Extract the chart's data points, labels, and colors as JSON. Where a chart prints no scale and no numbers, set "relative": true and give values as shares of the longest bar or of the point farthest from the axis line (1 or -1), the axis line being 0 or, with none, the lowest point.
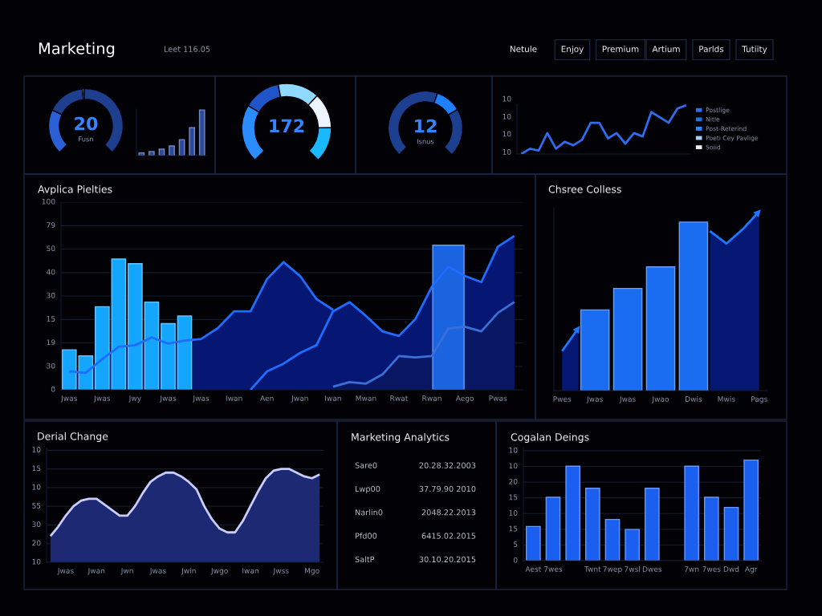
{
  "chart_data": [
    {
      "type": "other",
      "title": "Marketing",
      "annotations": [
        "Leet 116.05",
        "Netule",
        "Enjoy",
        "Premium",
        "Artium",
        "Parlds",
        "Tutiity"
      ]
    },
    {
      "type": "donut",
      "categories": [
        null,
        null,
        null,
        null
      ],
      "values": [
        26,
        22,
        1,
        51
      ],
      "colors": [
        "#2a5fd6",
        "#1d3f8e",
        "#a8c4f0",
        "#1d3f8e"
      ],
      "annotations": [
        "20",
        "Fusn"
      ]
    },
    {
      "type": "bar",
      "relative": true,
      "categories": [
        null,
        null,
        null,
        null,
        null,
        null,
        null
      ],
      "values": [
        0.06,
        0.09,
        0.14,
        0.21,
        0.35,
        0.61,
        1
      ],
      "color": "#2c4a9c"
    },
    {
      "type": "donut",
      "categories": [
        null,
        null,
        null,
        null,
        null
      ],
      "values": [
        28,
        18,
        20,
        17,
        17
      ],
      "colors": [
        "#2a8cff",
        "#1f55c8",
        "#8fd8ff",
        "#eef4ff",
        "#19b8ff"
      ],
      "annotations": [
        "172"
      ]
    },
    {
      "type": "donut",
      "categories": [
        null,
        null,
        null
      ],
      "values": [
        57,
        15,
        28
      ],
      "colors": [
        "#1c3f8f",
        "#1e7fff",
        "#1c3f8f"
      ],
      "annotations": [
        "12",
        "Isnus"
      ]
    },
    {
      "type": "line",
      "relative": true,
      "legend": "right",
      "annotations": [
        "10",
        "10",
        "10",
        "10"
      ],
      "categories": [
        null,
        null,
        null,
        null,
        null,
        null,
        null,
        null,
        null,
        null,
        null,
        null,
        null,
        null,
        null,
        null,
        null,
        null,
        null,
        null
      ],
      "series": [
        {
          "name": "Postlige",
          "color": "#2f6cf0",
          "values": [
            0,
            0.11,
            0.07,
            0.43,
            0.11,
            0.25,
            0.18,
            0.29,
            0.64,
            0.64,
            0.32,
            0.43,
            0.21,
            0.43,
            0.36,
            0.86,
            0.75,
            0.64,
            0.93,
            1.0
          ]
        },
        {
          "name": "Nitle",
          "color": "#1f6fe8",
          "values": [
            null,
            null,
            null,
            null,
            null,
            null,
            null,
            null,
            null,
            null,
            null,
            null,
            null,
            null,
            null,
            null,
            null,
            null,
            null,
            null
          ]
        },
        {
          "name": "Post-Reterind",
          "color": "#2a86ff",
          "values": [
            null,
            null,
            null,
            null,
            null,
            null,
            null,
            null,
            null,
            null,
            null,
            null,
            null,
            null,
            null,
            null,
            null,
            null,
            null,
            null
          ]
        },
        {
          "name": "Poeti Cey Pavlige",
          "color": "#a9cdf0",
          "values": [
            null,
            null,
            null,
            null,
            null,
            null,
            null,
            null,
            null,
            null,
            null,
            null,
            null,
            null,
            null,
            null,
            null,
            null,
            null,
            null
          ]
        },
        {
          "name": "Soiid",
          "color": "#eeeeee",
          "values": [
            null,
            null,
            null,
            null,
            null,
            null,
            null,
            null,
            null,
            null,
            null,
            null,
            null,
            null,
            null,
            null,
            null,
            null,
            null,
            null
          ]
        }
      ]
    },
    {
      "type": "bar",
      "title": "Avplica Pielties",
      "relative": true,
      "annotations": [
        "100",
        "79",
        "50",
        "40",
        "30",
        "15",
        "19",
        "30",
        "0"
      ],
      "grid": "y",
      "categories": [
        "Jwas",
        null,
        "Jwas",
        null,
        "Jwy",
        null,
        "Jwas",
        null,
        "Jwas",
        null,
        "Iwan",
        null,
        "Aen",
        null,
        "Jwan",
        null,
        "Iwan",
        null,
        "Mwan",
        null,
        "Rwat",
        null,
        "Rwan",
        null,
        "Aego",
        null,
        "Pwas",
        null
      ],
      "series": [
        {
          "type": "area",
          "color": "#1f6dff",
          "values": [
            0.12,
            0.11,
            0.2,
            0.28,
            0.29,
            0.34,
            0.3,
            0.32,
            0.33,
            0.4,
            0.51,
            0.51,
            0.72,
            0.83,
            0.74,
            0.59,
            0.52,
            null,
            null,
            null,
            null,
            null,
            null,
            null,
            null,
            null,
            null,
            null
          ]
        },
        {
          "type": "area",
          "color": "#1f6dff",
          "values": [
            null,
            null,
            null,
            null,
            null,
            null,
            null,
            null,
            null,
            null,
            null,
            0,
            0.12,
            0.17,
            0.24,
            0.29,
            0.51,
            0.57,
            0.48,
            0.38,
            0.35,
            0.46,
            0.67,
            0.8,
            0.74,
            0.7,
            0.93,
            1.0
          ]
        },
        {
          "type": "area",
          "color": "#3a6fd8",
          "values": [
            null,
            null,
            null,
            null,
            null,
            null,
            null,
            null,
            null,
            null,
            null,
            null,
            null,
            null,
            null,
            null,
            0.02,
            0.05,
            0.04,
            0.1,
            0.22,
            0.21,
            0.22,
            0.4,
            0.41,
            0.38,
            0.5,
            0.57
          ]
        },
        {
          "type": "bar",
          "color": "#14a6ff",
          "values": [
            0.26,
            0.22,
            0.54,
            0.85,
            0.82,
            0.57,
            0.43,
            0.48,
            null,
            null,
            null,
            null,
            null,
            null,
            null,
            null,
            null,
            null,
            null,
            null,
            null,
            null,
            null,
            null,
            null,
            null,
            null,
            null
          ]
        },
        {
          "type": "bar",
          "color": "#1a64e0",
          "values": [
            null,
            null,
            null,
            null,
            null,
            null,
            null,
            null,
            null,
            null,
            null,
            null,
            null,
            null,
            null,
            null,
            null,
            null,
            null,
            null,
            null,
            null,
            null,
            0.94,
            null,
            null,
            null,
            null
          ]
        }
      ]
    },
    {
      "type": "bar",
      "title": "Chsree Colless",
      "relative": true,
      "categories": [
        "Pwes",
        null,
        "Jwas",
        null,
        "Jwas",
        null,
        "Jwao",
        null,
        "Dwis",
        null,
        "Mwis",
        null,
        "Pags"
      ],
      "series": [
        {
          "type": "area",
          "color": "#1f78ff",
          "values": [
            0.22,
            0.35,
            null,
            null,
            null,
            null,
            null,
            null,
            null,
            null,
            null,
            null,
            null
          ]
        },
        {
          "type": "area",
          "color": "#1f78ff",
          "values": [
            null,
            null,
            null,
            null,
            null,
            null,
            null,
            null,
            null,
            0.89,
            0.82,
            0.9,
            1.0
          ]
        },
        {
          "type": "bar",
          "color": "#1a6cf0",
          "values": [
            null,
            null,
            0.45,
            null,
            0.57,
            null,
            0.69,
            null,
            0.94,
            null,
            null,
            null,
            null
          ]
        }
      ]
    },
    {
      "type": "area",
      "title": "Derial Change",
      "relative": true,
      "color": "#c8ccff",
      "annotations": [
        "10",
        "15",
        "10",
        "55",
        "30",
        "20",
        "10"
      ],
      "grid": "y",
      "categories": [
        null,
        null,
        "Jwas",
        null,
        null,
        null,
        "Jwan",
        null,
        null,
        null,
        "Jwn",
        null,
        null,
        null,
        "Jwas",
        null,
        null,
        null,
        "Jwin",
        null,
        null,
        null,
        "Jwgo",
        null,
        null,
        null,
        "Iwan",
        null,
        null,
        null,
        "Jwss",
        null,
        null,
        null,
        "Mgo",
        null
      ],
      "values": [
        0.28,
        0.38,
        0.5,
        0.6,
        0.66,
        0.68,
        0.68,
        0.62,
        0.56,
        0.5,
        0.5,
        0.6,
        0.74,
        0.86,
        0.92,
        0.96,
        0.96,
        0.92,
        0.86,
        0.78,
        0.6,
        0.46,
        0.36,
        0.32,
        0.32,
        0.44,
        0.6,
        0.76,
        0.9,
        0.98,
        1.0,
        1.0,
        0.96,
        0.92,
        0.9,
        0.94
      ]
    },
    {
      "type": "other",
      "title": "Marketing Analytics",
      "annotations": [
        "Sare0",
        "20.28.32.2003",
        "Lwp00",
        "37.79.90 2010",
        "Narlin0",
        "2048.22.2013",
        "Pfd00",
        "6415.02.2015",
        "SaltP",
        "30.10.20.2015"
      ]
    },
    {
      "type": "bar",
      "title": "Cogalan Deings",
      "relative": true,
      "color": "#1a5ff0",
      "annotations": [
        "10",
        "10",
        "20",
        "15",
        "10",
        "15",
        "5",
        "0"
      ],
      "grid": "y",
      "categories": [
        "Aest",
        "7wes",
        null,
        "Twnt",
        "7wep",
        "7wsl",
        "Dwes",
        null,
        "7wn",
        "7wes",
        "Dwd",
        "Agr"
      ],
      "values": [
        0.34,
        0.63,
        0.94,
        0.72,
        0.41,
        0.31,
        0.72,
        null,
        0.94,
        0.63,
        0.53,
        1.0
      ]
    }
  ]
}
